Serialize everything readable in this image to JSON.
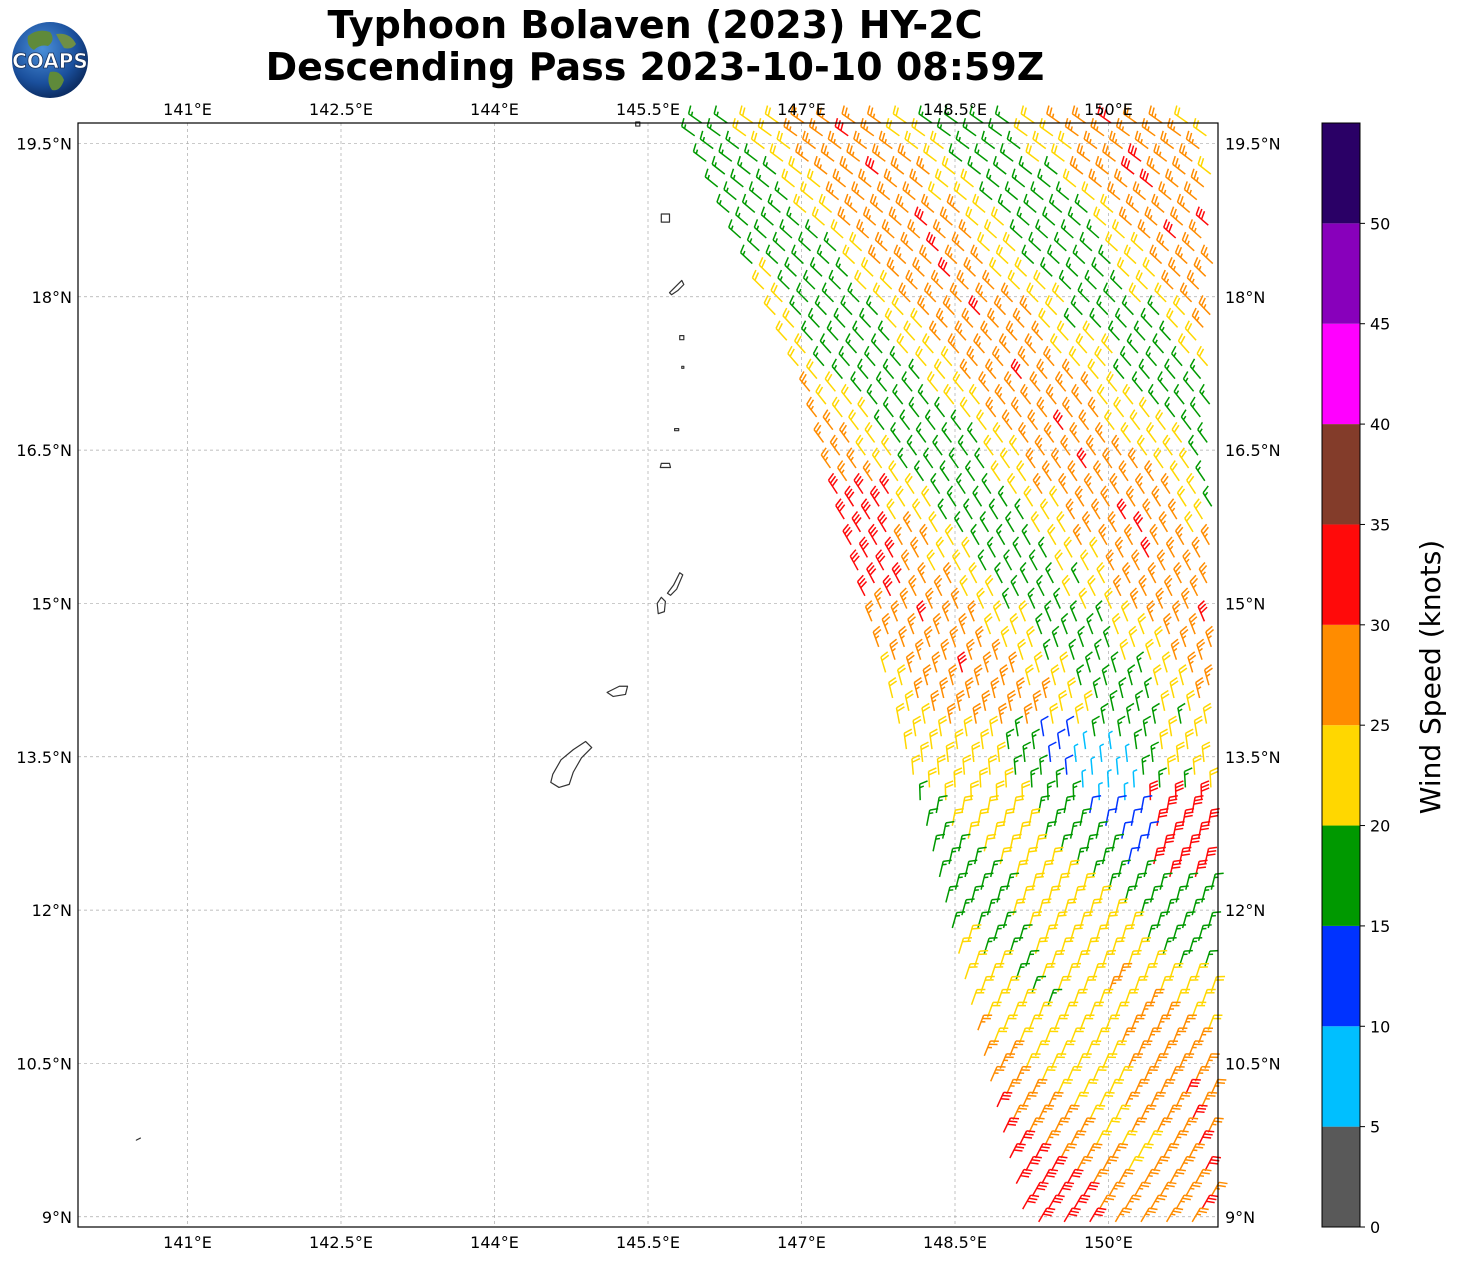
{
  "title_line1": "Typhoon Bolaven (2023) HY-2C",
  "title_line2": "Descending Pass 2023-10-10 08:59Z",
  "logo_text": "COAPS",
  "lon_ticks": [
    {
      "value": 141.0,
      "label": "141°E"
    },
    {
      "value": 142.5,
      "label": "142.5°E"
    },
    {
      "value": 144.0,
      "label": "144°E"
    },
    {
      "value": 145.5,
      "label": "145.5°E"
    },
    {
      "value": 147.0,
      "label": "147°E"
    },
    {
      "value": 148.5,
      "label": "148.5°E"
    },
    {
      "value": 150.0,
      "label": "150°E"
    }
  ],
  "lat_ticks": [
    {
      "value": 19.5,
      "label": "19.5°N"
    },
    {
      "value": 18.0,
      "label": "18°N"
    },
    {
      "value": 16.5,
      "label": "16.5°N"
    },
    {
      "value": 15.0,
      "label": "15°N"
    },
    {
      "value": 13.5,
      "label": "13.5°N"
    },
    {
      "value": 12.0,
      "label": "12°N"
    },
    {
      "value": 10.5,
      "label": "10.5°N"
    },
    {
      "value": 9.0,
      "label": "9°N"
    }
  ],
  "extent": {
    "lon_min": 139.93,
    "lon_max": 151.07,
    "lat_min": 8.9,
    "lat_max": 19.7
  },
  "colorbar": {
    "label": "Wind Speed (knots)",
    "bins": [
      {
        "from": 0,
        "to": 5,
        "color": "#595959"
      },
      {
        "from": 5,
        "to": 10,
        "color": "#00bfff"
      },
      {
        "from": 10,
        "to": 15,
        "color": "#0033ff"
      },
      {
        "from": 15,
        "to": 20,
        "color": "#009900"
      },
      {
        "from": 20,
        "to": 25,
        "color": "#ffd700"
      },
      {
        "from": 25,
        "to": 30,
        "color": "#ff8c00"
      },
      {
        "from": 30,
        "to": 35,
        "color": "#ff0a0a"
      },
      {
        "from": 35,
        "to": 40,
        "color": "#833c2a"
      },
      {
        "from": 40,
        "to": 45,
        "color": "#ff00ff"
      },
      {
        "from": 45,
        "to": 50,
        "color": "#8800bb"
      },
      {
        "from": 50,
        "to": 55,
        "color": "#2a0066"
      }
    ],
    "tick_labels": [
      "0",
      "5",
      "10",
      "15",
      "20",
      "25",
      "30",
      "35",
      "40",
      "45",
      "50"
    ]
  },
  "islands": [
    {
      "name": "Guam",
      "lon": 144.75,
      "lat": 13.45
    },
    {
      "name": "Rota",
      "lon": 145.2,
      "lat": 14.15
    },
    {
      "name": "Tinian",
      "lon": 145.63,
      "lat": 14.98
    },
    {
      "name": "Saipan",
      "lon": 145.75,
      "lat": 15.2
    },
    {
      "name": "Anatahan",
      "lon": 145.67,
      "lat": 16.35
    },
    {
      "name": "Sarigan",
      "lon": 145.78,
      "lat": 16.7
    },
    {
      "name": "Guguan",
      "lon": 145.84,
      "lat": 17.31
    },
    {
      "name": "Alamagan",
      "lon": 145.83,
      "lat": 17.6
    },
    {
      "name": "Pagan",
      "lon": 145.77,
      "lat": 18.1
    },
    {
      "name": "Agrihan",
      "lon": 145.67,
      "lat": 18.77
    },
    {
      "name": "Asuncion",
      "lon": 145.4,
      "lat": 19.69
    },
    {
      "name": "Fais",
      "lon": 140.52,
      "lat": 9.76
    }
  ],
  "wind_swath": {
    "description_hidden": false,
    "rows_lat_top": 19.7,
    "rows_lat_bottom": 8.95,
    "row_spacing_deg": 0.125
  }
}
